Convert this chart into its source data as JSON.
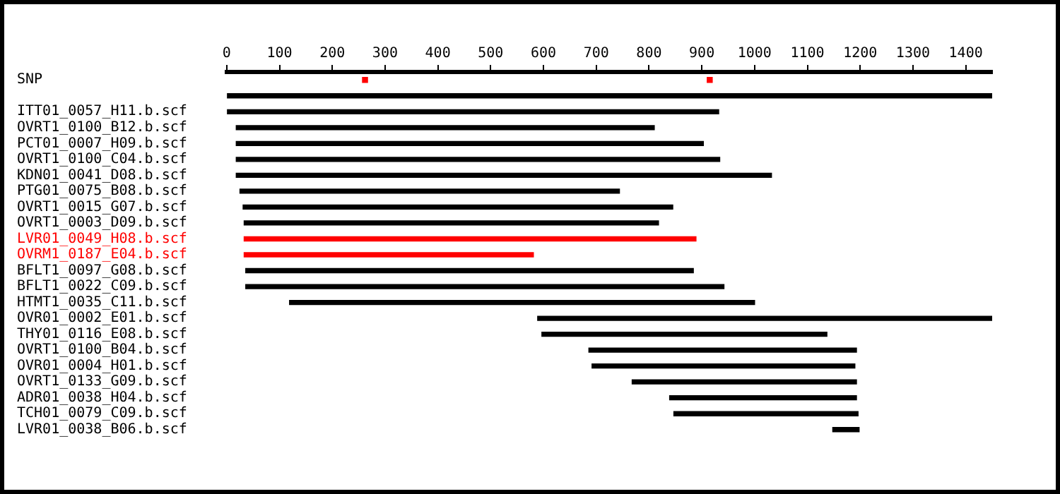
{
  "chart_data": {
    "type": "bar",
    "orientation": "horizontal",
    "categories": [
      "SNP",
      null,
      "ITT01_0057_H11.b.scf",
      "OVRT1_0100_B12.b.scf",
      "PCT01_0007_H09.b.scf",
      "OVRT1_0100_C04.b.scf",
      "KDN01_0041_D08.b.scf",
      "PTG01_0075_B08.b.scf",
      "OVRT1_0015_G07.b.scf",
      "OVRT1_0003_D09.b.scf",
      "LVR01_0049_H08.b.scf",
      "OVRM1_0187_E04.b.scf",
      "BFLT1_0097_G08.b.scf",
      "BFLT1_0022_C09.b.scf",
      "HTMT1_0035_C11.b.scf",
      "OVR01_0002_E01.b.scf",
      "THY01_0116_E08.b.scf",
      "OVRT1_0100_B04.b.scf",
      "OVR01_0004_H01.b.scf",
      "OVRT1_0133_G09.b.scf",
      "ADR01_0038_H04.b.scf",
      "TCH01_0079_C09.b.scf",
      "LVR01_0038_B06.b.scf"
    ],
    "series": [
      {
        "base": [
          null,
          0,
          0,
          18,
          18,
          18,
          18,
          25,
          31,
          33,
          33,
          33,
          36,
          36,
          119,
          589,
          597,
          686,
          692,
          768,
          839,
          847,
          1148
        ],
        "values": [
          null,
          1450,
          932,
          792,
          885,
          916,
          1014,
          719,
          814,
          785,
          856,
          548,
          848,
          906,
          881,
          861,
          540,
          507,
          498,
          425,
          354,
          349,
          50
        ],
        "colors": [
          "#000000",
          "#000000",
          "#000000",
          "#000000",
          "#000000",
          "#000000",
          "#000000",
          "#000000",
          "#000000",
          "#000000",
          "#ff0000",
          "#ff0000",
          "#000000",
          "#000000",
          "#000000",
          "#000000",
          "#000000",
          "#000000",
          "#000000",
          "#000000",
          "#000000",
          "#000000",
          "#000000"
        ]
      },
      {
        "type": "scatter",
        "color": "#ff0000",
        "marker": "square",
        "x": [
          "SNP",
          "SNP"
        ],
        "values": [
          262,
          915
        ]
      }
    ],
    "xlim": [
      0,
      1450
    ],
    "xticks": [
      0,
      100,
      200,
      300,
      400,
      500,
      600,
      700,
      800,
      900,
      1000,
      1100,
      1200,
      1300,
      1400
    ],
    "grid": false,
    "legend": false
  }
}
